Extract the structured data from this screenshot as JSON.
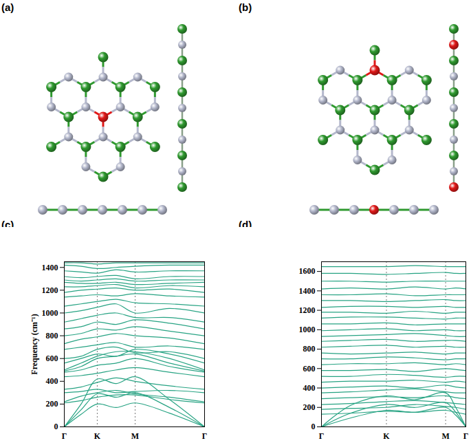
{
  "structures": [
    {
      "label": "(a)"
    },
    {
      "label": "(b)"
    }
  ],
  "chart_data": [
    {
      "type": "line",
      "label": "(c)",
      "ylabel": "Frequency (cm⁻¹)",
      "color": "#27a383",
      "x": [
        0,
        0.12,
        0.235,
        0.37,
        0.505,
        0.75,
        1
      ],
      "bands": [
        [
          0,
          110,
          200,
          170,
          210,
          120,
          0
        ],
        [
          0,
          150,
          290,
          260,
          300,
          170,
          0
        ],
        [
          0,
          200,
          420,
          380,
          440,
          240,
          0
        ],
        [
          210,
          230,
          260,
          280,
          280,
          240,
          210
        ],
        [
          220,
          270,
          300,
          320,
          290,
          260,
          220
        ],
        [
          300,
          310,
          330,
          300,
          310,
          320,
          300
        ],
        [
          330,
          350,
          390,
          430,
          400,
          360,
          330
        ],
        [
          440,
          450,
          470,
          500,
          520,
          480,
          440
        ],
        [
          480,
          500,
          540,
          560,
          600,
          530,
          480
        ],
        [
          490,
          530,
          600,
          620,
          640,
          560,
          490
        ],
        [
          500,
          560,
          620,
          660,
          660,
          600,
          500
        ],
        [
          560,
          600,
          640,
          620,
          680,
          640,
          560
        ],
        [
          600,
          620,
          680,
          700,
          650,
          660,
          600
        ],
        [
          680,
          700,
          720,
          740,
          700,
          710,
          680
        ],
        [
          730,
          770,
          790,
          820,
          800,
          780,
          730
        ],
        [
          800,
          820,
          860,
          850,
          880,
          840,
          800
        ],
        [
          860,
          880,
          920,
          900,
          940,
          910,
          860
        ],
        [
          920,
          950,
          980,
          1000,
          960,
          960,
          920
        ],
        [
          1000,
          1020,
          1050,
          1080,
          1000,
          1040,
          1000
        ],
        [
          1060,
          1080,
          1100,
          1120,
          1090,
          1080,
          1060
        ],
        [
          1140,
          1150,
          1160,
          1150,
          1170,
          1150,
          1140
        ],
        [
          1180,
          1200,
          1210,
          1220,
          1200,
          1210,
          1180
        ],
        [
          1230,
          1230,
          1240,
          1250,
          1220,
          1240,
          1230
        ],
        [
          1270,
          1260,
          1260,
          1270,
          1250,
          1260,
          1270
        ],
        [
          1290,
          1280,
          1290,
          1300,
          1280,
          1290,
          1290
        ],
        [
          1320,
          1310,
          1320,
          1330,
          1300,
          1320,
          1320
        ],
        [
          1370,
          1360,
          1350,
          1380,
          1360,
          1370,
          1370
        ],
        [
          1420,
          1410,
          1390,
          1400,
          1410,
          1420,
          1420
        ],
        [
          1440,
          1440,
          1430,
          1440,
          1440,
          1440,
          1440
        ]
      ],
      "xlim": [
        0,
        1
      ],
      "xticks": [
        {
          "value": 0,
          "label": "Γ"
        },
        {
          "value": 0.235,
          "label": "K"
        },
        {
          "value": 0.505,
          "label": "M"
        },
        {
          "value": 1,
          "label": "Γ"
        }
      ],
      "ylim": [
        0,
        1450
      ],
      "yticks": [
        0,
        200,
        400,
        600,
        800,
        1000,
        1200,
        1400
      ],
      "grid": true
    },
    {
      "type": "line",
      "label": "(d)",
      "color": "#27a383",
      "x": [
        0,
        0.2,
        0.45,
        0.65,
        0.86,
        0.93,
        1
      ],
      "bands": [
        [
          0,
          90,
          170,
          150,
          200,
          120,
          0
        ],
        [
          0,
          140,
          230,
          200,
          250,
          150,
          0
        ],
        [
          0,
          220,
          320,
          280,
          350,
          200,
          0
        ],
        [
          130,
          140,
          160,
          150,
          170,
          150,
          130
        ],
        [
          180,
          190,
          200,
          230,
          210,
          200,
          180
        ],
        [
          230,
          240,
          260,
          270,
          250,
          240,
          230
        ],
        [
          290,
          300,
          310,
          300,
          320,
          300,
          290
        ],
        [
          350,
          360,
          380,
          390,
          360,
          350,
          350
        ],
        [
          400,
          410,
          420,
          400,
          430,
          410,
          400
        ],
        [
          460,
          470,
          470,
          480,
          460,
          470,
          460
        ],
        [
          520,
          520,
          540,
          530,
          510,
          520,
          520
        ],
        [
          580,
          580,
          590,
          570,
          600,
          590,
          580
        ],
        [
          640,
          650,
          650,
          660,
          640,
          650,
          640
        ],
        [
          700,
          700,
          720,
          710,
          690,
          700,
          700
        ],
        [
          760,
          750,
          760,
          770,
          750,
          760,
          760
        ],
        [
          820,
          830,
          840,
          820,
          830,
          820,
          820
        ],
        [
          880,
          890,
          900,
          880,
          890,
          890,
          880
        ],
        [
          930,
          940,
          950,
          960,
          940,
          930,
          930
        ],
        [
          990,
          1000,
          1010,
          990,
          1000,
          990,
          990
        ],
        [
          1060,
          1060,
          1070,
          1050,
          1060,
          1060,
          1060
        ],
        [
          1120,
          1130,
          1130,
          1120,
          1110,
          1120,
          1120
        ],
        [
          1180,
          1180,
          1170,
          1190,
          1170,
          1180,
          1180
        ],
        [
          1230,
          1240,
          1240,
          1230,
          1240,
          1230,
          1230
        ],
        [
          1300,
          1300,
          1290,
          1300,
          1310,
          1300,
          1300
        ],
        [
          1360,
          1360,
          1370,
          1350,
          1360,
          1360,
          1360
        ],
        [
          1420,
          1430,
          1420,
          1440,
          1420,
          1430,
          1420
        ],
        [
          1500,
          1500,
          1490,
          1500,
          1500,
          1500,
          1500
        ],
        [
          1580,
          1580,
          1570,
          1580,
          1590,
          1580,
          1580
        ],
        [
          1650,
          1650,
          1650,
          1660,
          1650,
          1650,
          1650
        ]
      ],
      "xlim": [
        0,
        1
      ],
      "xticks": [
        {
          "value": 0,
          "label": "Γ"
        },
        {
          "value": 0.45,
          "label": "K"
        },
        {
          "value": 0.86,
          "label": "M"
        },
        {
          "value": 1,
          "label": "Γ"
        }
      ],
      "ylim": [
        0,
        1700
      ],
      "yticks": [
        0,
        200,
        400,
        600,
        800,
        1000,
        1200,
        1400,
        1600
      ],
      "grid": true
    }
  ]
}
